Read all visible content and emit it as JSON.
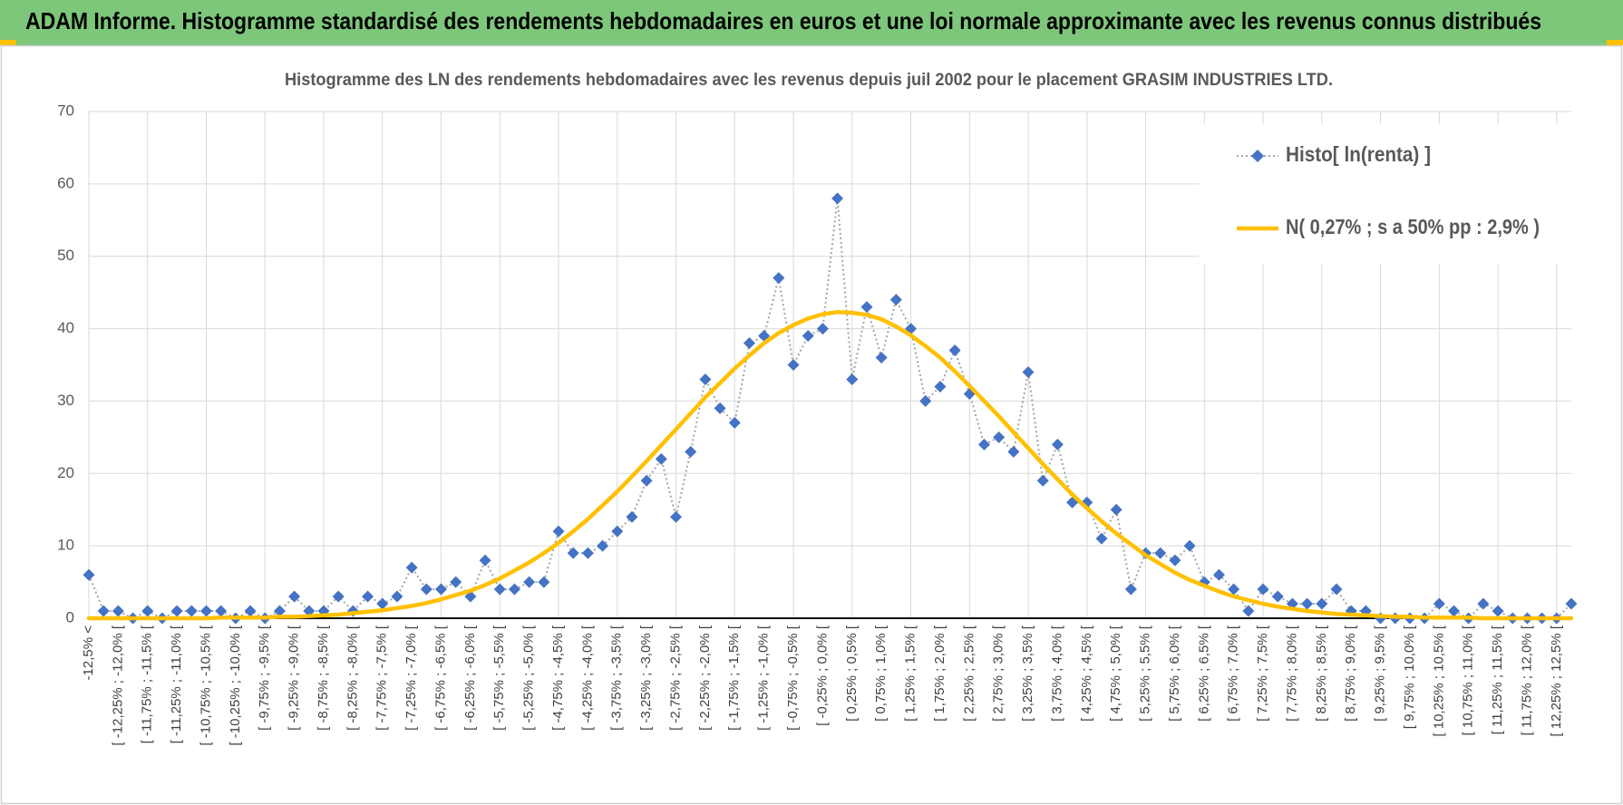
{
  "header": {
    "title": "ADAM Informe. Histogramme standardisé des rendements hebdomadaires en euros et une loi normale approximante avec les revenus connus distribués"
  },
  "chart_data": {
    "type": "line",
    "title": "Histogramme des LN des rendements hebdomadaires avec les revenus depuis juil 2002 pour le placement GRASIM INDUSTRIES LTD.",
    "categories": [
      "-12,5% <",
      null,
      "[ -12,25% ; -12,0% [",
      null,
      "[ -11,75% ; -11,5% [",
      null,
      "[ -11,25% ; -11,0% [",
      null,
      "[ -10,75% ; -10,5% [",
      null,
      "[ -10,25% ; -10,0% [",
      null,
      "[ -9,75% ; -9,5% [",
      null,
      "[ -9,25% ; -9,0% [",
      null,
      "[ -8,75% ; -8,5% [",
      null,
      "[ -8,25% ; -8,0% [",
      null,
      "[ -7,75% ; -7,5% [",
      null,
      "[ -7,25% ; -7,0% [",
      null,
      "[ -6,75% ; -6,5% [",
      null,
      "[ -6,25% ; -6,0% [",
      null,
      "[ -5,75% ; -5,5% [",
      null,
      "[ -5,25% ; -5,0% [",
      null,
      "[ -4,75% ; -4,5% [",
      null,
      "[ -4,25% ; -4,0% [",
      null,
      "[ -3,75% ; -3,5% [",
      null,
      "[ -3,25% ; -3,0% [",
      null,
      "[ -2,75% ; -2,5% [",
      null,
      "[ -2,25% ; -2,0% [",
      null,
      "[ -1,75% ; -1,5% [",
      null,
      "[ -1,25% ; -1,0% [",
      null,
      "[ -0,75% ; -0,5% [",
      null,
      "[ -0,25% ; 0,0% [",
      null,
      "[ 0,25% ; 0,5% [",
      null,
      "[ 0,75% ; 1,0% [",
      null,
      "[ 1,25% ; 1,5% [",
      null,
      "[ 1,75% ; 2,0% [",
      null,
      "[ 2,25% ; 2,5% [",
      null,
      "[ 2,75% ; 3,0% [",
      null,
      "[ 3,25% ; 3,5% [",
      null,
      "[ 3,75% ; 4,0% [",
      null,
      "[ 4,25% ; 4,5% [",
      null,
      "[ 4,75% ; 5,0% [",
      null,
      "[ 5,25% ; 5,5% [",
      null,
      "[ 5,75% ; 6,0% [",
      null,
      "[ 6,25% ; 6,5% [",
      null,
      "[ 6,75% ; 7,0% [",
      null,
      "[ 7,25% ; 7,5% [",
      null,
      "[ 7,75% ; 8,0% [",
      null,
      "[ 8,25% ; 8,5% [",
      null,
      "[ 8,75% ; 9,0% [",
      null,
      "[ 9,25% ; 9,5% [",
      null,
      "[ 9,75% ; 10,0% [",
      null,
      "[ 10,25% ; 10,5% [",
      null,
      "[ 10,75% ; 11,0% [",
      null,
      "[ 11,25% ; 11,5% [",
      null,
      "[ 11,75% ; 12,0% [",
      null,
      "[ 12,25% ; 12,5% [",
      null
    ],
    "series": [
      {
        "name": "Histo[ ln(renta) ]",
        "color": "#4472c4",
        "marker": "diamond",
        "line_color": "#a5a5a5",
        "dash": "dotted",
        "values": [
          6,
          1,
          1,
          0,
          1,
          0,
          1,
          1,
          1,
          1,
          0,
          1,
          0,
          1,
          3,
          1,
          1,
          3,
          1,
          3,
          2,
          3,
          7,
          4,
          4,
          5,
          3,
          8,
          4,
          4,
          5,
          5,
          12,
          9,
          9,
          10,
          12,
          14,
          19,
          22,
          14,
          23,
          33,
          29,
          27,
          38,
          39,
          47,
          35,
          39,
          40,
          58,
          33,
          43,
          36,
          44,
          40,
          30,
          32,
          37,
          31,
          24,
          25,
          23,
          34,
          19,
          24,
          16,
          16,
          11,
          15,
          4,
          9,
          9,
          8,
          10,
          5,
          6,
          4,
          1,
          4,
          3,
          2,
          2,
          2,
          4,
          1,
          1,
          0,
          0,
          0,
          0,
          2,
          1,
          0,
          2,
          1,
          0,
          0,
          0,
          0,
          2
        ]
      },
      {
        "name": "N( 0,27% ; s a 50% pp : 2,9% )",
        "color": "#ffc000",
        "line_color": "#ffc000",
        "dash": "solid",
        "values": [
          0.0,
          0.0,
          0.0,
          0.0,
          0.0,
          0.0,
          0.0,
          0.0,
          0.0,
          0.1,
          0.1,
          0.1,
          0.1,
          0.2,
          0.2,
          0.3,
          0.4,
          0.5,
          0.7,
          0.9,
          1.1,
          1.4,
          1.7,
          2.1,
          2.6,
          3.2,
          3.8,
          4.6,
          5.5,
          6.6,
          7.7,
          9.0,
          10.4,
          12.0,
          13.7,
          15.6,
          17.5,
          19.6,
          21.7,
          23.9,
          26.1,
          28.3,
          30.5,
          32.5,
          34.5,
          36.3,
          38.0,
          39.4,
          40.5,
          41.4,
          42.0,
          42.3,
          42.2,
          41.9,
          41.3,
          40.3,
          39.1,
          37.6,
          36.0,
          34.1,
          32.1,
          30.0,
          27.9,
          25.7,
          23.5,
          21.3,
          19.2,
          17.1,
          15.2,
          13.4,
          11.7,
          10.2,
          8.7,
          7.5,
          6.3,
          5.3,
          4.5,
          3.7,
          3.0,
          2.5,
          2.0,
          1.6,
          1.3,
          1.0,
          0.8,
          0.6,
          0.5,
          0.4,
          0.3,
          0.2,
          0.2,
          0.1,
          0.1,
          0.1,
          0.1,
          0.0,
          0.0,
          0.0,
          0.0,
          0.0,
          0.0,
          0.0
        ]
      }
    ],
    "ylim": [
      0,
      70
    ],
    "yticks": [
      0,
      10,
      20,
      30,
      40,
      50,
      60,
      70
    ],
    "grid": true,
    "legend": "top-right"
  }
}
